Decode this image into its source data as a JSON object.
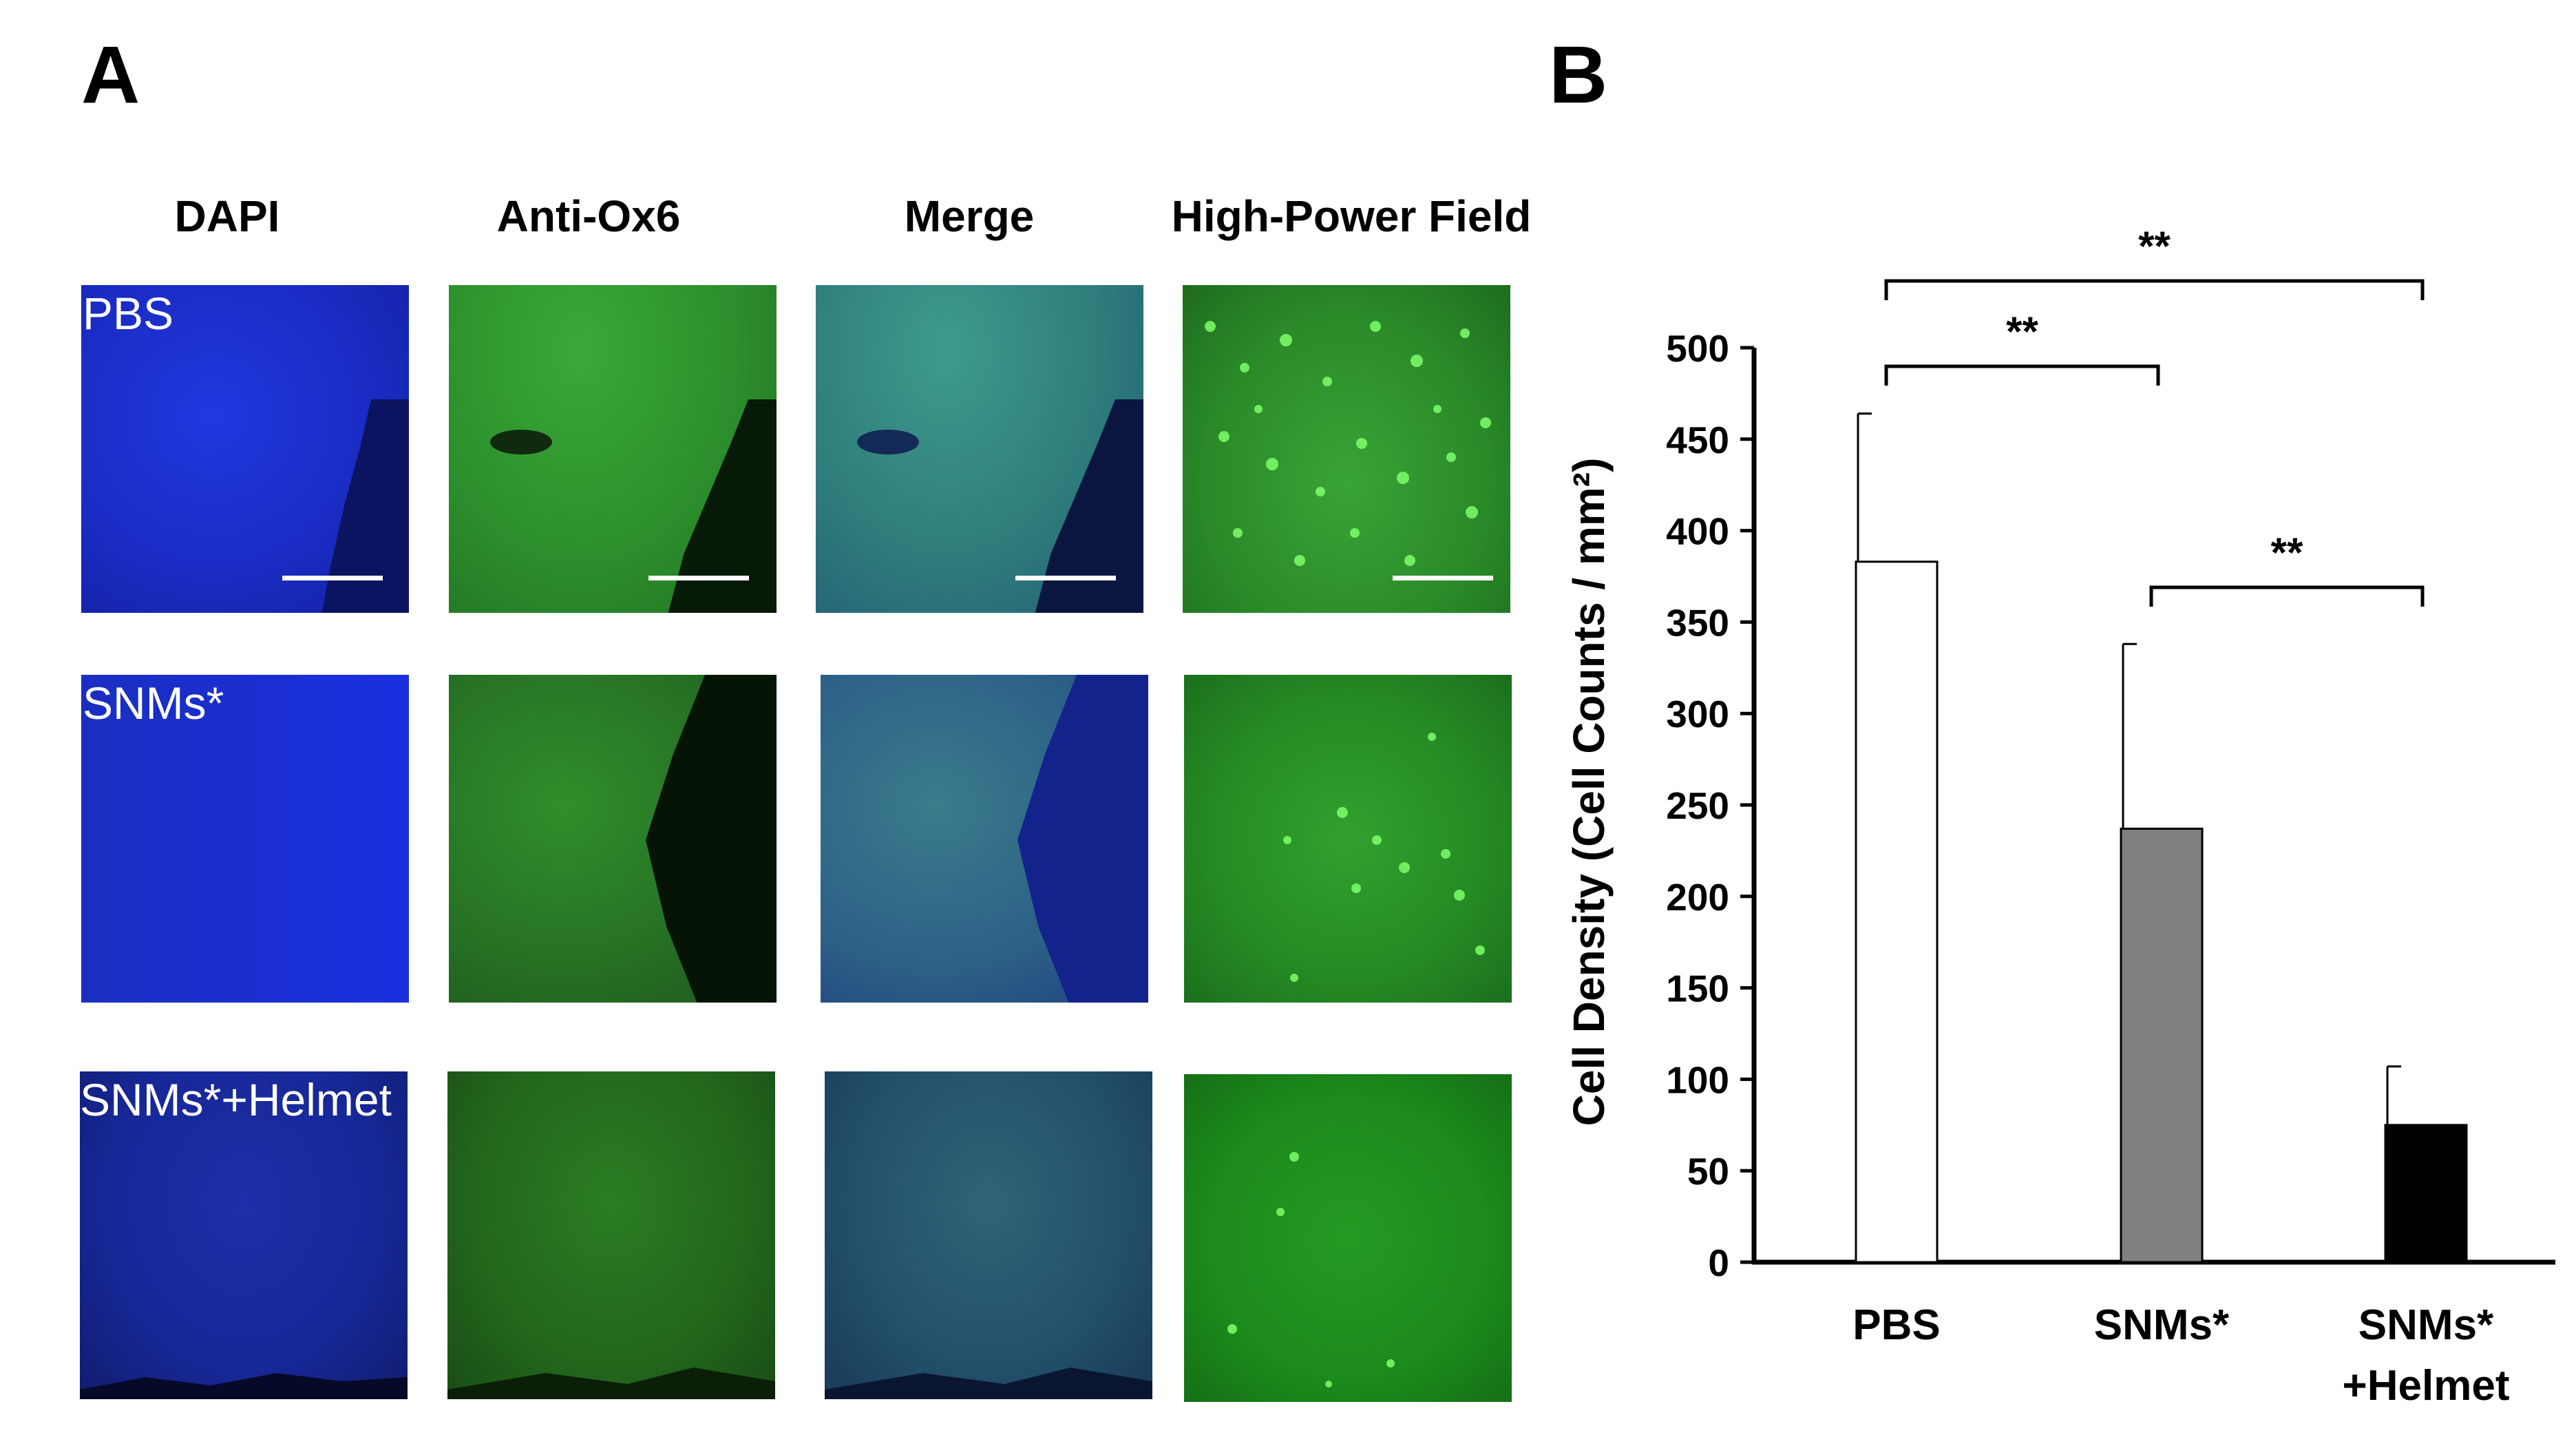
{
  "panels": {
    "a_label": "A",
    "b_label": "B"
  },
  "micrograph_grid": {
    "columns": [
      "DAPI",
      "Anti-Ox6",
      "Merge",
      "High-Power Field"
    ],
    "rows": [
      {
        "label": "PBS",
        "scale_bars": true
      },
      {
        "label": "SNMs*",
        "scale_bars": false
      },
      {
        "label": "SNMs*+Helmet",
        "scale_bars": false
      }
    ],
    "channel_colors": {
      "DAPI": "#1a2fd8",
      "Anti-Ox6": "#2c9a2a",
      "Merge": "#2a6b8a",
      "High-Power Field": "#2aa12a"
    }
  },
  "chart_data": {
    "type": "bar",
    "categories": [
      "PBS",
      "SNMs*",
      "SNMs*\n+Helmet"
    ],
    "values": [
      383,
      237,
      75
    ],
    "error_upper": [
      464,
      338,
      107
    ],
    "bar_colors": [
      "#ffffff",
      "#808080",
      "#000000"
    ],
    "ylabel": "Cell Density (Cell Counts / mm²)",
    "ylim": [
      0,
      500
    ],
    "yticks": [
      0,
      50,
      100,
      150,
      200,
      250,
      300,
      350,
      400,
      450,
      500
    ],
    "xlabel": "",
    "significance": [
      {
        "from": 0,
        "to": 2,
        "label": "**"
      },
      {
        "from": 0,
        "to": 1,
        "label": "**"
      },
      {
        "from": 1,
        "to": 2,
        "label": "**"
      }
    ],
    "grid": false
  }
}
